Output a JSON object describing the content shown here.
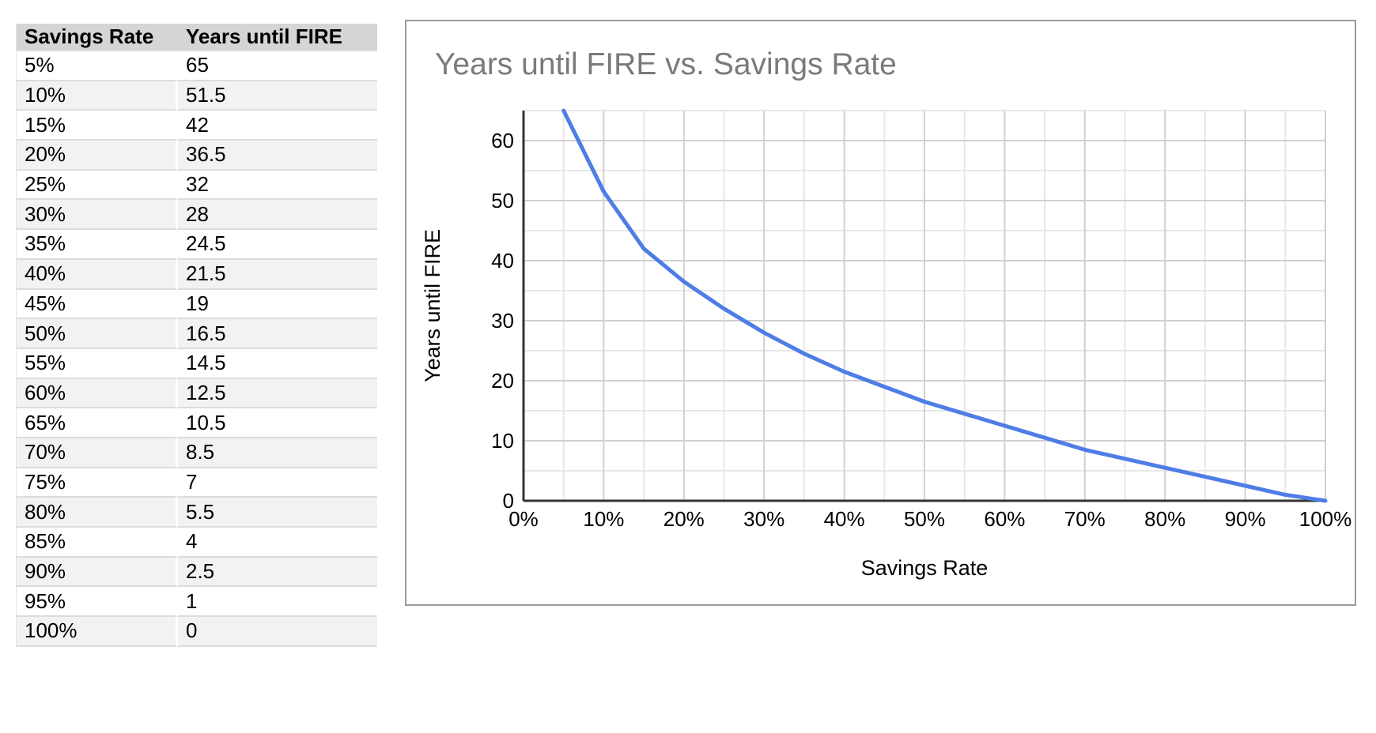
{
  "table": {
    "headers": [
      "Savings Rate",
      "Years until FIRE"
    ],
    "rows": [
      [
        "5%",
        "65"
      ],
      [
        "10%",
        "51.5"
      ],
      [
        "15%",
        "42"
      ],
      [
        "20%",
        "36.5"
      ],
      [
        "25%",
        "32"
      ],
      [
        "30%",
        "28"
      ],
      [
        "35%",
        "24.5"
      ],
      [
        "40%",
        "21.5"
      ],
      [
        "45%",
        "19"
      ],
      [
        "50%",
        "16.5"
      ],
      [
        "55%",
        "14.5"
      ],
      [
        "60%",
        "12.5"
      ],
      [
        "65%",
        "10.5"
      ],
      [
        "70%",
        "8.5"
      ],
      [
        "75%",
        "7"
      ],
      [
        "80%",
        "5.5"
      ],
      [
        "85%",
        "4"
      ],
      [
        "90%",
        "2.5"
      ],
      [
        "95%",
        "1"
      ],
      [
        "100%",
        "0"
      ]
    ]
  },
  "chart_data": {
    "type": "line",
    "title": "Years until FIRE vs. Savings Rate",
    "xlabel": "Savings Rate",
    "ylabel": "Years until FIRE",
    "x": [
      5,
      10,
      15,
      20,
      25,
      30,
      35,
      40,
      45,
      50,
      55,
      60,
      65,
      70,
      75,
      80,
      85,
      90,
      95,
      100
    ],
    "y": [
      65,
      51.5,
      42,
      36.5,
      32,
      28,
      24.5,
      21.5,
      19,
      16.5,
      14.5,
      12.5,
      10.5,
      8.5,
      7,
      5.5,
      4,
      2.5,
      1,
      0
    ],
    "xlim": [
      0,
      100
    ],
    "ylim": [
      0,
      65
    ],
    "x_tick_values": [
      0,
      10,
      20,
      30,
      40,
      50,
      60,
      70,
      80,
      90,
      100
    ],
    "x_tick_labels": [
      "0%",
      "10%",
      "20%",
      "30%",
      "40%",
      "50%",
      "60%",
      "70%",
      "80%",
      "90%",
      "100%"
    ],
    "y_tick_values": [
      0,
      10,
      20,
      30,
      40,
      50,
      60
    ],
    "y_tick_labels": [
      "0",
      "10",
      "20",
      "30",
      "40",
      "50",
      "60"
    ],
    "minor_grid_step_x": 5,
    "minor_grid_step_y": 5,
    "grid": true,
    "legend_position": "none",
    "line_color": "#4e7de6",
    "major_grid_color": "#d0d0d0",
    "minor_grid_color": "#e7e7e7",
    "axis_color": "#333333",
    "title_color": "#7a7a7a",
    "tick_label_color": "#000000"
  }
}
